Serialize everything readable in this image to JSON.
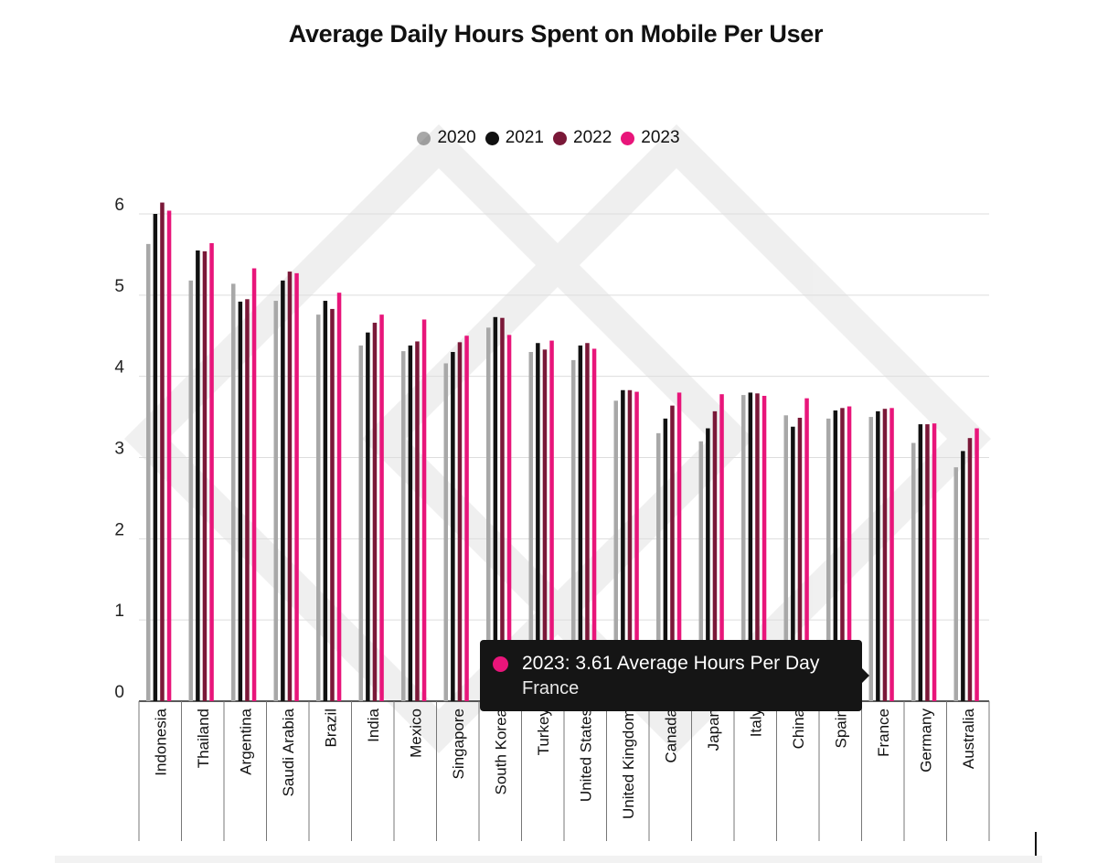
{
  "colors": {
    "2020": "#a8a8a8",
    "2021": "#111111",
    "2022": "#7a1838",
    "2023": "#e8157a"
  },
  "tooltip": {
    "line1": "2023: 3.61 Average Hours Per Day",
    "line2": "France"
  },
  "chart_data": {
    "type": "bar",
    "title": "Average Daily Hours Spent on Mobile Per User",
    "xlabel": "",
    "ylabel": "",
    "ylim": [
      0,
      6
    ],
    "yticks": [
      "0",
      "1",
      "2",
      "3",
      "4",
      "5",
      "6"
    ],
    "grid": true,
    "legend_position": "top-center",
    "categories": [
      "Indonesia",
      "Thailand",
      "Argentina",
      "Saudi Arabia",
      "Brazil",
      "India",
      "Mexico",
      "Singapore",
      "South Korea",
      "Turkey",
      "United States",
      "United Kingdom",
      "Canada",
      "Japan",
      "Italy",
      "China",
      "Spain",
      "France",
      "Germany",
      "Australia"
    ],
    "series": [
      {
        "name": "2020",
        "values": [
          5.63,
          5.18,
          5.14,
          4.93,
          4.76,
          4.38,
          4.31,
          4.16,
          4.6,
          4.3,
          4.2,
          3.7,
          3.3,
          3.2,
          3.77,
          3.52,
          3.48,
          3.5,
          3.18,
          2.88
        ]
      },
      {
        "name": "2021",
        "values": [
          6.0,
          5.55,
          4.92,
          5.18,
          4.93,
          4.54,
          4.38,
          4.3,
          4.73,
          4.41,
          4.38,
          3.83,
          3.48,
          3.36,
          3.8,
          3.38,
          3.58,
          3.57,
          3.41,
          3.08
        ]
      },
      {
        "name": "2022",
        "values": [
          6.14,
          5.54,
          4.95,
          5.29,
          4.83,
          4.66,
          4.43,
          4.42,
          4.72,
          4.33,
          4.41,
          3.83,
          3.64,
          3.57,
          3.79,
          3.49,
          3.61,
          3.6,
          3.41,
          3.24
        ]
      },
      {
        "name": "2023",
        "values": [
          6.04,
          5.64,
          5.33,
          5.27,
          5.03,
          4.76,
          4.7,
          4.5,
          4.51,
          4.44,
          4.34,
          3.81,
          3.8,
          3.78,
          3.76,
          3.73,
          3.63,
          3.61,
          3.42,
          3.36
        ]
      }
    ]
  }
}
